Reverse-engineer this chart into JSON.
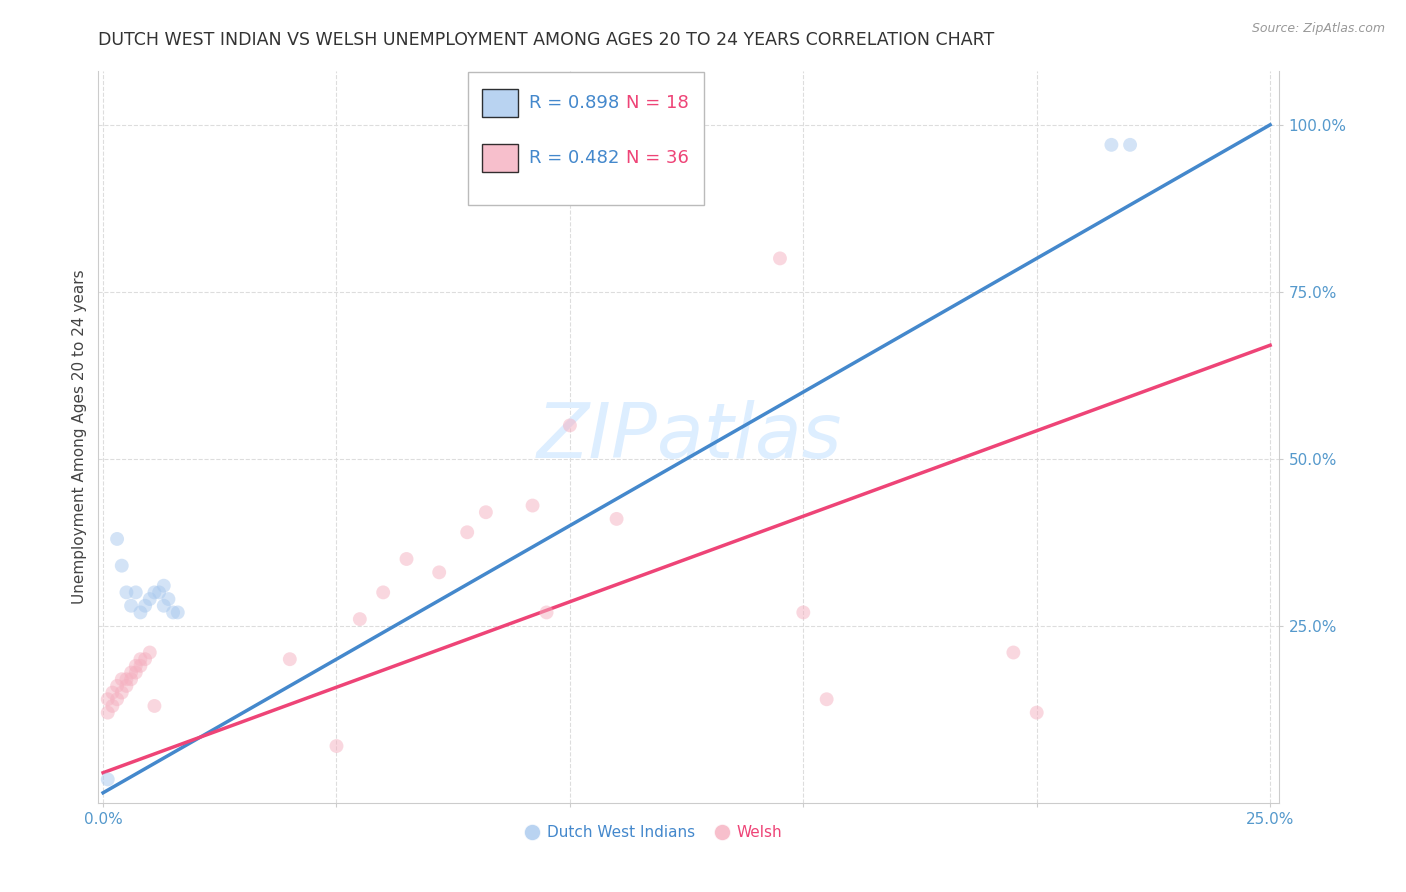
{
  "title": "DUTCH WEST INDIAN VS WELSH UNEMPLOYMENT AMONG AGES 20 TO 24 YEARS CORRELATION CHART",
  "source": "Source: ZipAtlas.com",
  "ylabel": "Unemployment Among Ages 20 to 24 years",
  "xlim": [
    -0.001,
    0.252
  ],
  "ylim": [
    -0.015,
    1.08
  ],
  "xticks": [
    0.0,
    0.05,
    0.1,
    0.15,
    0.2,
    0.25
  ],
  "xtick_labels": [
    "0.0%",
    "",
    "",
    "",
    "",
    "25.0%"
  ],
  "yticks": [
    0.25,
    0.5,
    0.75,
    1.0
  ],
  "ytick_labels": [
    "25.0%",
    "50.0%",
    "75.0%",
    "100.0%"
  ],
  "blue_fill": "#A8C8EE",
  "pink_fill": "#F5B0C0",
  "blue_line": "#4488CC",
  "pink_line": "#EE4477",
  "blue_label": "Dutch West Indians",
  "pink_label": "Welsh",
  "R_blue": "0.898",
  "N_blue": "18",
  "R_pink": "0.482",
  "N_pink": "36",
  "watermark": "ZIPatlas",
  "watermark_color": "#DDEEFF",
  "grid_color": "#DDDDDD",
  "title_color": "#333333",
  "source_color": "#999999",
  "axis_label_color": "#444444",
  "tick_color": "#5599CC",
  "blue_x": [
    0.001,
    0.003,
    0.004,
    0.005,
    0.006,
    0.007,
    0.008,
    0.009,
    0.01,
    0.011,
    0.012,
    0.013,
    0.013,
    0.014,
    0.015,
    0.016,
    0.216,
    0.22
  ],
  "blue_y": [
    0.02,
    0.38,
    0.34,
    0.3,
    0.28,
    0.3,
    0.27,
    0.28,
    0.29,
    0.3,
    0.3,
    0.31,
    0.28,
    0.29,
    0.27,
    0.27,
    0.97,
    0.97
  ],
  "pink_x": [
    0.001,
    0.001,
    0.002,
    0.002,
    0.003,
    0.003,
    0.004,
    0.004,
    0.005,
    0.005,
    0.006,
    0.006,
    0.007,
    0.007,
    0.008,
    0.008,
    0.009,
    0.01,
    0.011,
    0.04,
    0.05,
    0.055,
    0.06,
    0.065,
    0.072,
    0.078,
    0.082,
    0.092,
    0.095,
    0.1,
    0.11,
    0.145,
    0.15,
    0.155,
    0.195,
    0.2
  ],
  "pink_y": [
    0.12,
    0.14,
    0.13,
    0.15,
    0.14,
    0.16,
    0.15,
    0.17,
    0.16,
    0.17,
    0.17,
    0.18,
    0.18,
    0.19,
    0.19,
    0.2,
    0.2,
    0.21,
    0.13,
    0.2,
    0.07,
    0.26,
    0.3,
    0.35,
    0.33,
    0.39,
    0.42,
    0.43,
    0.27,
    0.55,
    0.41,
    0.8,
    0.27,
    0.14,
    0.21,
    0.12
  ],
  "blue_regr": [
    0.0,
    0.0,
    0.25,
    1.0
  ],
  "pink_regr": [
    0.0,
    0.03,
    0.25,
    0.67
  ],
  "marker_size": 100,
  "marker_alpha": 0.5,
  "title_fontsize": 12.5,
  "tick_fontsize": 11,
  "ylabel_fontsize": 11,
  "source_fontsize": 9
}
